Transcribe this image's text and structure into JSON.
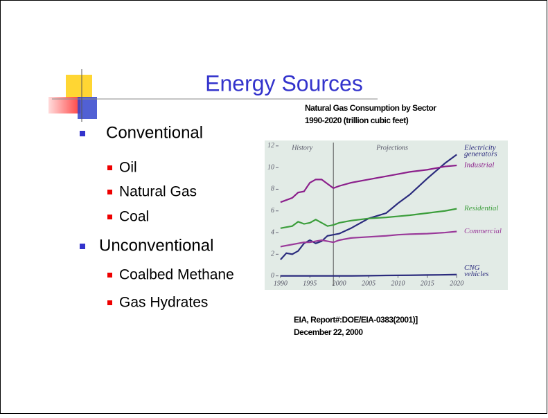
{
  "slide": {
    "title": "Energy Sources",
    "bullets": [
      {
        "text": "Conventional",
        "items": [
          "Oil",
          "Natural Gas",
          "Coal"
        ]
      },
      {
        "text": "Unconventional",
        "items": [
          "Coalbed Methane",
          "Gas Hydrates"
        ]
      }
    ],
    "source": [
      "EIA, Report#:DOE/EIA-0383(2001)]",
      "December 22, 2000"
    ]
  },
  "chart_data": {
    "type": "line",
    "title": "Natural Gas Consumption by Sector",
    "subtitle": "1990-2020 (trillion cubic feet)",
    "annotations": [
      "History",
      "Projections"
    ],
    "divider_x": 1999,
    "x": [
      1990,
      1991,
      1992,
      1993,
      1994,
      1995,
      1996,
      1997,
      1998,
      1999,
      2000,
      2002,
      2005,
      2008,
      2010,
      2012,
      2015,
      2018,
      2020
    ],
    "series": [
      {
        "name": "Electricity generators",
        "color": "#2b2b7d",
        "values": [
          1.5,
          2.1,
          2.0,
          2.3,
          3.0,
          3.3,
          3.0,
          3.2,
          3.7,
          3.8,
          3.9,
          4.4,
          5.3,
          5.8,
          6.7,
          7.5,
          9.0,
          10.4,
          11.2
        ]
      },
      {
        "name": "Industrial",
        "color": "#8b1f8b",
        "values": [
          6.8,
          7.0,
          7.2,
          7.7,
          7.8,
          8.6,
          8.9,
          8.9,
          8.5,
          8.1,
          8.3,
          8.6,
          8.9,
          9.2,
          9.4,
          9.6,
          9.8,
          10.1,
          10.2
        ]
      },
      {
        "name": "Residential",
        "color": "#3c9e3c",
        "values": [
          4.4,
          4.5,
          4.6,
          5.0,
          4.8,
          4.9,
          5.2,
          4.9,
          4.6,
          4.7,
          4.9,
          5.1,
          5.3,
          5.4,
          5.5,
          5.6,
          5.8,
          6.0,
          6.2
        ]
      },
      {
        "name": "Commercial",
        "color": "#9a3a9a",
        "values": [
          2.7,
          2.8,
          2.9,
          3.0,
          3.1,
          3.1,
          3.2,
          3.3,
          3.2,
          3.1,
          3.3,
          3.5,
          3.6,
          3.7,
          3.8,
          3.85,
          3.9,
          4.0,
          4.1
        ]
      },
      {
        "name": "CNG vehicles",
        "color": "#2b2b7d",
        "values": [
          0,
          0,
          0,
          0,
          0,
          0,
          0,
          0,
          0,
          0,
          0,
          0,
          0.02,
          0.04,
          0.05,
          0.06,
          0.08,
          0.1,
          0.12
        ]
      }
    ],
    "xlim": [
      1987.3,
      2028.7
    ],
    "xticks": [
      1990,
      1995,
      2000,
      2005,
      2010,
      2015,
      2020
    ],
    "ylim": [
      -1.3,
      12.5
    ],
    "yticks": [
      0,
      2,
      4,
      6,
      8,
      10,
      12
    ]
  }
}
